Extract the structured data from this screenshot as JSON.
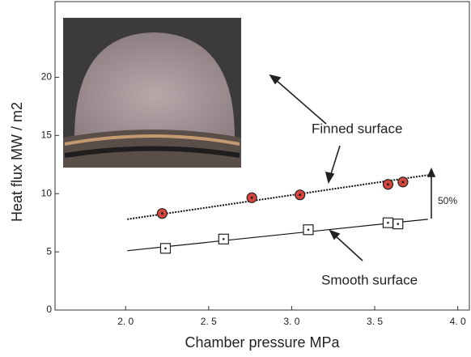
{
  "chart_data": {
    "type": "scatter",
    "xlabel": "Chamber pressure  MPa",
    "ylabel": "Heat flux  MW / m2",
    "xlim": [
      1.575,
      4.07
    ],
    "ylim": [
      0,
      26.5
    ],
    "xticks": [
      {
        "value": 2,
        "label": "2. 0"
      },
      {
        "value": 2.5,
        "label": "2. 5"
      },
      {
        "value": 3,
        "label": "3. 0"
      },
      {
        "value": 3.5,
        "label": "3. 5"
      },
      {
        "value": 4,
        "label": "4. 0"
      }
    ],
    "yticks": [
      0,
      5,
      10,
      15,
      20
    ],
    "series": [
      {
        "name": "Finned surface",
        "color": "#d8453c",
        "marker": "circle",
        "linestyle": "dotted",
        "x": [
          2.22,
          2.76,
          3.05,
          3.58,
          3.67
        ],
        "values": [
          8.3,
          9.65,
          9.9,
          10.8,
          11.0
        ],
        "trend_x": [
          2.01,
          3.82
        ],
        "trend_y": [
          7.8,
          11.6
        ]
      },
      {
        "name": "Smooth surface",
        "color": "#ffffff",
        "marker": "square",
        "linestyle": "solid",
        "x": [
          2.24,
          2.59,
          3.1,
          3.58,
          3.64
        ],
        "values": [
          5.3,
          6.1,
          6.9,
          7.5,
          7.4
        ],
        "trend_x": [
          2.01,
          3.82
        ],
        "trend_y": [
          5.1,
          7.8
        ]
      }
    ],
    "annotations": [
      "50%"
    ]
  }
}
